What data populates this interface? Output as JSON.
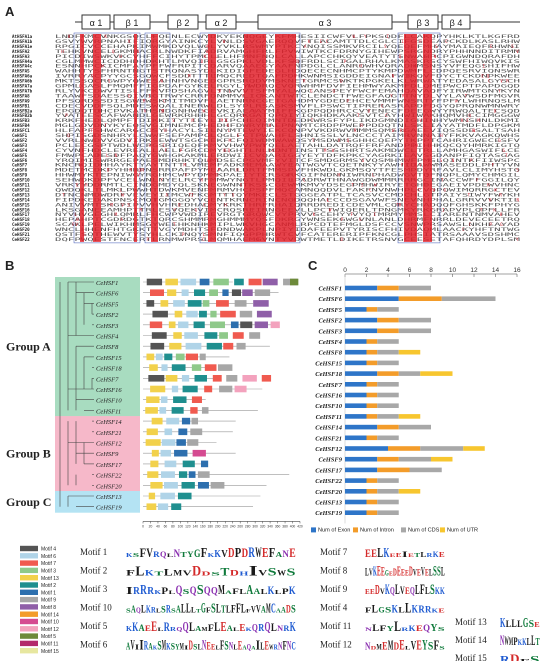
{
  "panels": {
    "a": "A",
    "b": "B",
    "c": "C"
  },
  "panel_a": {
    "structure": [
      {
        "label": "α 1"
      },
      {
        "label": "β 1"
      },
      {
        "label": "β 2"
      },
      {
        "label": "α 2"
      },
      {
        "label": "α 3"
      },
      {
        "label": "β 3"
      },
      {
        "label": "β 4"
      }
    ],
    "sequences": [
      "AtHSFA1a",
      "AtHSFA1b",
      "AtHSFA1e",
      "AtHSFA2",
      "AtHSFA3",
      "AtHSFA4a",
      "AtHSFA4c",
      "AtHSFA5",
      "AtHSFA6a",
      "AtHSFA6b",
      "AtHSFA7a",
      "AtHSFA7b",
      "AtHSFA8",
      "AtHSFA9",
      "AtHSFB1",
      "AtHSFB2a",
      "AtHSFB2b",
      "AtHSFB3",
      "AtHSFB4",
      "AtHSFC1",
      "CeHSF1",
      "CeHSF2",
      "CeHSF3",
      "CeHSF4",
      "CeHSF5",
      "CeHSF6",
      "CeHSF7",
      "CeHSF8",
      "CeHSF9",
      "CeHSF10",
      "CeHSF11",
      "CeHSF12",
      "CeHSF13",
      "CeHSF14",
      "CeHSF15",
      "CeHSF16",
      "CeHSF17",
      "CeHSF18",
      "CeHSF19",
      "CeHSF20",
      "CeHSF21",
      "CeHSF22"
    ]
  },
  "panel_b": {
    "groups": [
      {
        "label": "Group A",
        "color": "#a8dcc0"
      },
      {
        "label": "Group B",
        "color": "#f6b8c9"
      },
      {
        "label": "Group C",
        "color": "#b4e3f3"
      }
    ],
    "genes": [
      "CeHSF1",
      "CeHSF6",
      "CeHSF5",
      "CeHSF2",
      "CeHSF3",
      "CeHSF4",
      "CeHSF8",
      "CeHSF15",
      "CeHSF18",
      "CeHSF7",
      "CeHSF16",
      "CeHSF10",
      "CeHSF11",
      "CeHSF14",
      "CeHSF21",
      "CeHSF12",
      "CeHSF9",
      "CeHSF17",
      "CeHSF22",
      "CeHSF20",
      "CeHSF13",
      "CeHSF19"
    ],
    "scale_ticks": [
      "0",
      "20",
      "40",
      "60",
      "80",
      "100",
      "120",
      "140",
      "160",
      "180",
      "200",
      "220",
      "240",
      "260",
      "280",
      "300",
      "320",
      "340",
      "360",
      "380",
      "400",
      "420"
    ],
    "motif_colors": {
      "m1": "#545454",
      "m2": "#b0d4e8",
      "m3": "#f05a4f",
      "m4": "#8fc98a",
      "m5": "#f2d14b",
      "m6": "#1f8f8f",
      "m7": "#2d6fae",
      "m8": "#a7a7a7",
      "m9": "#8f5fa8",
      "m10": "#f39c2a",
      "m11": "#d54b91",
      "m12": "#f3a2bd",
      "m13": "#6d8a3a",
      "m14": "#b32a6b",
      "m15": "#e7e7a0"
    },
    "legend": [
      "Motif 1",
      "Motif 2",
      "Motif 3",
      "Motif 4",
      "Motif 5",
      "Motif 6",
      "Motif 7",
      "Motif 8",
      "Motif 9",
      "Motif 10",
      "Motif 11",
      "Motif 12",
      "Motif 13",
      "Motif 14",
      "Motif 15"
    ]
  },
  "panel_c": {
    "type": "bar",
    "xlim": [
      0,
      16
    ],
    "ticks": [
      "0",
      "2",
      "4",
      "6",
      "8",
      "10",
      "12",
      "14",
      "16"
    ],
    "genes": [
      "CeHSF1",
      "CeHSF6",
      "CeHSF5",
      "CeHSF2",
      "CeHSF3",
      "CeHSF4",
      "CeHSF8",
      "CeHSF15",
      "CeHSF18",
      "CeHSF7",
      "CeHSF16",
      "CeHSF10",
      "CeHSF11",
      "CeHSF14",
      "CeHSF21",
      "CeHSF12",
      "CeHSF9",
      "CeHSF17",
      "CeHSF22",
      "CeHSF20",
      "CeHSF13",
      "CeHSF19"
    ],
    "series": [
      {
        "name": "Num of Exon",
        "color": "#2e75c8",
        "values": [
          3,
          5,
          2,
          3,
          3,
          2,
          2,
          2,
          3,
          2,
          2,
          2,
          2,
          3,
          2,
          4,
          3,
          3,
          2,
          2,
          2,
          2
        ]
      },
      {
        "name": "Num of Intron",
        "color": "#f39c2a",
        "values": [
          2,
          4,
          1,
          2,
          2,
          1,
          1,
          1,
          2,
          1,
          1,
          1,
          1,
          2,
          1,
          3,
          2,
          3,
          1,
          1,
          1,
          1
        ]
      },
      {
        "name": "Num of CDS",
        "color": "#a8a8a8",
        "values": [
          3,
          5,
          2,
          3,
          3,
          2,
          2,
          2,
          2,
          2,
          2,
          2,
          2,
          3,
          2,
          4,
          3,
          3,
          2,
          2,
          2,
          2
        ]
      },
      {
        "name": "Num of UTR",
        "color": "#f7c62f",
        "values": [
          0,
          0,
          0,
          0,
          0,
          0,
          2,
          0,
          3,
          0,
          0,
          0,
          2,
          0,
          0,
          2,
          2,
          0,
          0,
          2,
          0,
          0
        ]
      }
    ]
  },
  "logos": {
    "col1": [
      {
        "name": "Motif 1",
        "seq": "KSFVRQLNTYGFKKVDPDRWEFANE"
      },
      {
        "name": "Motif 2",
        "seq": "FLKTLMVDDSTDHIVSWS"
      },
      {
        "name": "Motif 3",
        "seq": "IRRRKPLQSQSQQMAFLAALKLPK"
      },
      {
        "name": "Motif 10",
        "seq": "SAQLKRLSRSALLLTGFSLTLFFLFVVAMCAADS"
      },
      {
        "name": "Motif 5",
        "seq": "KKAEELRRQQLAMFLEALEKQRQLNRK"
      },
      {
        "name": "Motif 6",
        "seq": "AVIIRAKSMKSYMIDSLNEELFSNLEAQAILEWRNFNC"
      }
    ],
    "col2": [
      {
        "name": "Motif 7",
        "seq": "EELKEEIETLRKE"
      },
      {
        "name": "Motif 8",
        "seq": "LVKEEGEDEEEDVEVELSSL"
      },
      {
        "name": "Motif 9",
        "seq": "EEDVKQLVEQLFLSKK"
      },
      {
        "name": "Motif 4",
        "seq": "FLGSKLLKRRKE"
      },
      {
        "name": "Motif 11",
        "seq": "NLFYLRKEQYS"
      },
      {
        "name": "Motif 12",
        "seq": "NDMEMDELVEYSFS"
      }
    ],
    "col3": [
      {
        "name": "Motif 13",
        "seq": "KLLLGSE"
      },
      {
        "name": "Motif 14",
        "seq": "NWMPKKLLT"
      },
      {
        "name": "Motif 15",
        "seq": "RDFS"
      }
    ]
  }
}
